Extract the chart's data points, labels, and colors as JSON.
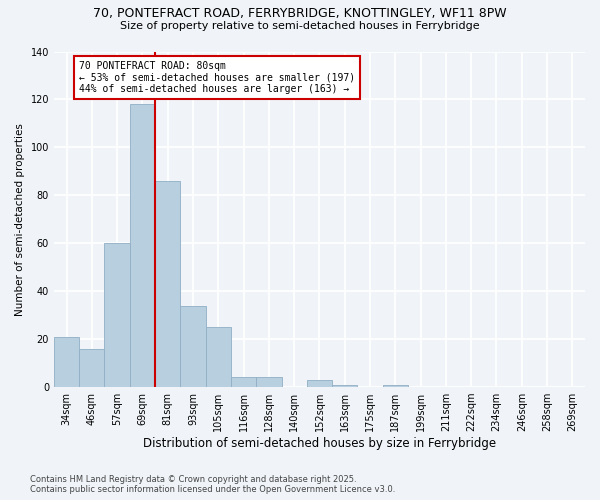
{
  "title1": "70, PONTEFRACT ROAD, FERRYBRIDGE, KNOTTINGLEY, WF11 8PW",
  "title2": "Size of property relative to semi-detached houses in Ferrybridge",
  "xlabel": "Distribution of semi-detached houses by size in Ferrybridge",
  "ylabel": "Number of semi-detached properties",
  "categories": [
    "34sqm",
    "46sqm",
    "57sqm",
    "69sqm",
    "81sqm",
    "93sqm",
    "105sqm",
    "116sqm",
    "128sqm",
    "140sqm",
    "152sqm",
    "163sqm",
    "175sqm",
    "187sqm",
    "199sqm",
    "211sqm",
    "222sqm",
    "234sqm",
    "246sqm",
    "258sqm",
    "269sqm"
  ],
  "values": [
    21,
    16,
    60,
    118,
    86,
    34,
    25,
    4,
    4,
    0,
    3,
    1,
    0,
    1,
    0,
    0,
    0,
    0,
    0,
    0,
    0
  ],
  "bar_color": "#b8cfe0",
  "bar_edge_color": "#90aec5",
  "ref_line_idx": 3.5,
  "ref_line_label": "70 PONTEFRACT ROAD: 80sqm",
  "pct_smaller_text": "← 53% of semi-detached houses are smaller (197)",
  "pct_larger_text": "44% of semi-detached houses are larger (163) →",
  "annotation_box_color": "#cc0000",
  "ylim": [
    0,
    140
  ],
  "yticks": [
    0,
    20,
    40,
    60,
    80,
    100,
    120,
    140
  ],
  "footnote1": "Contains HM Land Registry data © Crown copyright and database right 2025.",
  "footnote2": "Contains public sector information licensed under the Open Government Licence v3.0.",
  "bg_color": "#f0f4f8",
  "grid_color": "#d0dce8",
  "title1_fontsize": 9,
  "title2_fontsize": 8,
  "xlabel_fontsize": 8.5,
  "ylabel_fontsize": 7.5,
  "tick_fontsize": 7,
  "annotation_fontsize": 7,
  "footnote_fontsize": 6
}
